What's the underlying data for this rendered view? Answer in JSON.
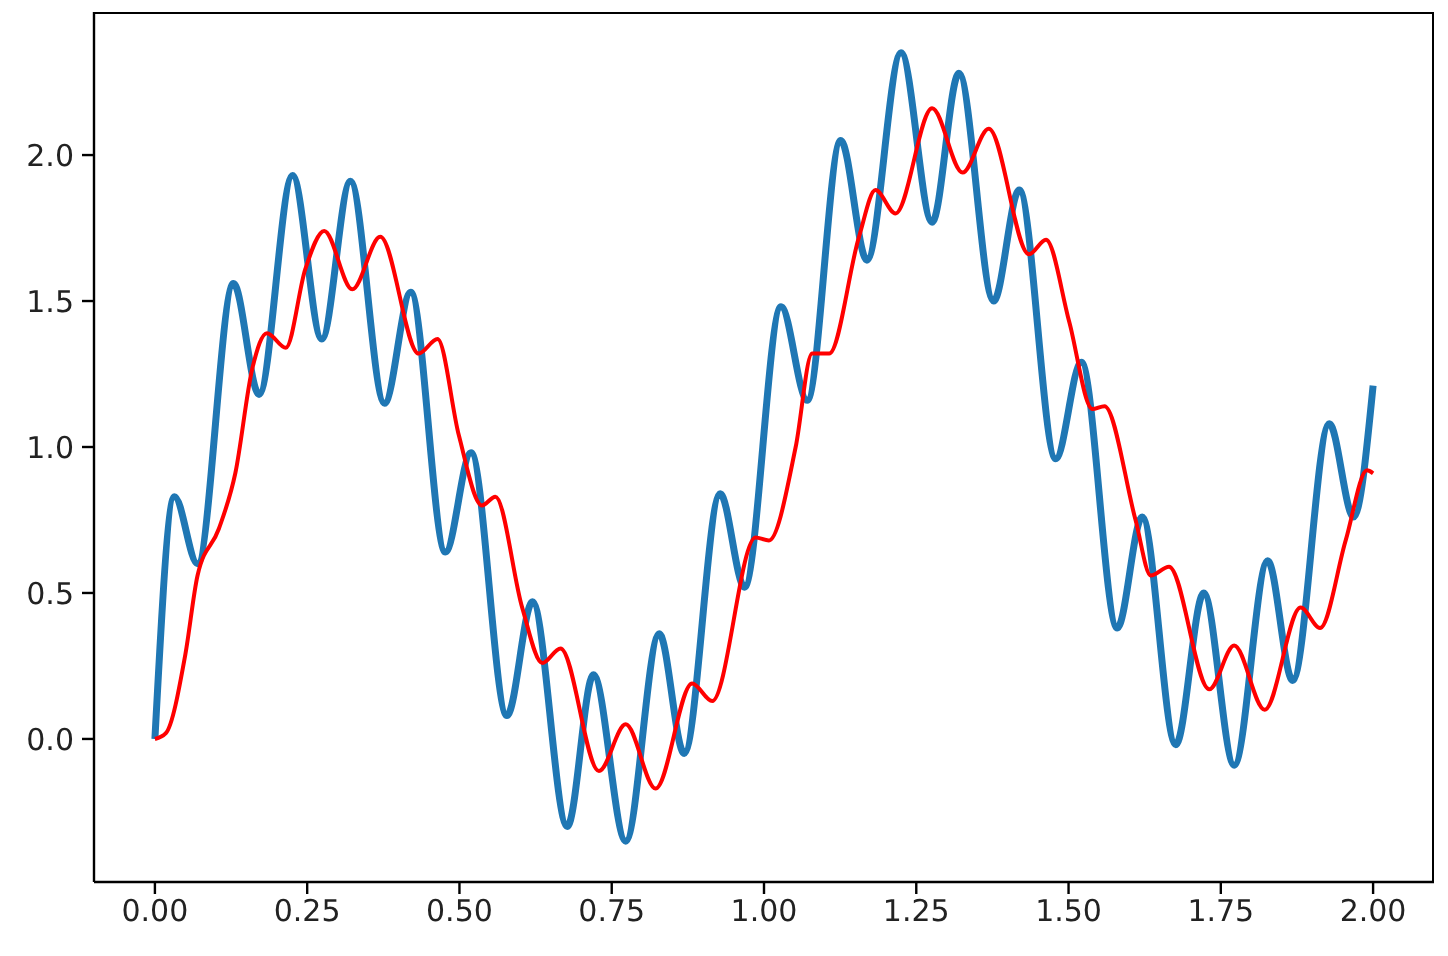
{
  "chart_data": {
    "type": "line",
    "marker": "none",
    "line_style": "solid",
    "xlim": [
      -0.1,
      2.1
    ],
    "xticks": [
      {
        "value": 0,
        "label": "0.00"
      },
      {
        "value": 0.25,
        "label": "0.25"
      },
      {
        "value": 0.5,
        "label": "0.50"
      },
      {
        "value": 0.75,
        "label": "0.75"
      },
      {
        "value": 1,
        "label": "1.00"
      },
      {
        "value": 1.25,
        "label": "1.25"
      },
      {
        "value": 1.5,
        "label": "1.50"
      },
      {
        "value": 1.75,
        "label": "1.75"
      },
      {
        "value": 2,
        "label": "2.00"
      }
    ],
    "ylim": [
      -0.49,
      2.49
    ],
    "yticks": [
      {
        "value": 0,
        "label": "0.0"
      },
      0.5,
      {
        "value": 1,
        "label": "1.0"
      },
      1.5,
      {
        "value": 2,
        "label": "2.0"
      }
    ],
    "series": [
      {
        "color": "#1f77b4",
        "x": [
          0,
          0.032,
          0.07,
          0.129,
          0.171,
          0.226,
          0.274,
          0.321,
          0.377,
          0.42,
          0.477,
          0.519,
          0.578,
          0.62,
          0.677,
          0.72,
          0.773,
          0.828,
          0.869,
          0.928,
          0.968,
          1.028,
          1.071,
          1.126,
          1.169,
          1.225,
          1.276,
          1.32,
          1.377,
          1.419,
          1.479,
          1.521,
          1.58,
          1.621,
          1.676,
          1.722,
          1.772,
          1.827,
          1.868,
          1.928,
          1.968,
          2.0
        ],
        "values": [
          0,
          0.83,
          0.6,
          1.56,
          1.18,
          1.93,
          1.37,
          1.91,
          1.15,
          1.53,
          0.64,
          0.98,
          0.08,
          0.47,
          -0.3,
          0.22,
          -0.35,
          0.36,
          -0.05,
          0.84,
          0.52,
          1.48,
          1.16,
          2.05,
          1.64,
          2.35,
          1.77,
          2.28,
          1.5,
          1.88,
          0.96,
          1.29,
          0.38,
          0.76,
          -0.02,
          0.5,
          -0.09,
          0.61,
          0.2,
          1.08,
          0.76,
          1.21
        ]
      },
      {
        "color": "#ff0000",
        "x": [
          0,
          0.018,
          0.05,
          0.07,
          0.105,
          0.132,
          0.16,
          0.184,
          0.215,
          0.247,
          0.278,
          0.324,
          0.37,
          0.433,
          0.464,
          0.499,
          0.537,
          0.559,
          0.603,
          0.636,
          0.666,
          0.729,
          0.773,
          0.822,
          0.882,
          0.915,
          0.986,
          1.008,
          1.052,
          1.079,
          1.107,
          1.156,
          1.183,
          1.216,
          1.276,
          1.326,
          1.369,
          1.435,
          1.463,
          1.501,
          1.539,
          1.559,
          1.61,
          1.635,
          1.665,
          1.731,
          1.772,
          1.822,
          1.881,
          1.913,
          1.955,
          1.99,
          2.0
        ],
        "values": [
          0,
          0.02,
          0.29,
          0.56,
          0.72,
          0.91,
          1.27,
          1.39,
          1.34,
          1.61,
          1.74,
          1.54,
          1.72,
          1.32,
          1.37,
          1.04,
          0.8,
          0.83,
          0.45,
          0.26,
          0.31,
          -0.11,
          0.05,
          -0.17,
          0.19,
          0.13,
          0.69,
          0.68,
          1.0,
          1.32,
          1.32,
          1.72,
          1.88,
          1.8,
          2.16,
          1.94,
          2.09,
          1.66,
          1.71,
          1.43,
          1.13,
          1.14,
          0.75,
          0.56,
          0.59,
          0.17,
          0.32,
          0.1,
          0.45,
          0.38,
          0.68,
          0.92,
          0.91
        ]
      }
    ]
  }
}
